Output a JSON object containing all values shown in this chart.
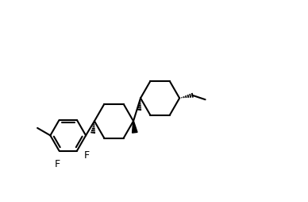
{
  "background_color": "#ffffff",
  "line_color": "#000000",
  "line_width": 1.5,
  "figsize": [
    3.88,
    2.54
  ],
  "dpi": 100,
  "xlim": [
    -0.5,
    9.5
  ],
  "ylim": [
    -1.5,
    5.5
  ]
}
